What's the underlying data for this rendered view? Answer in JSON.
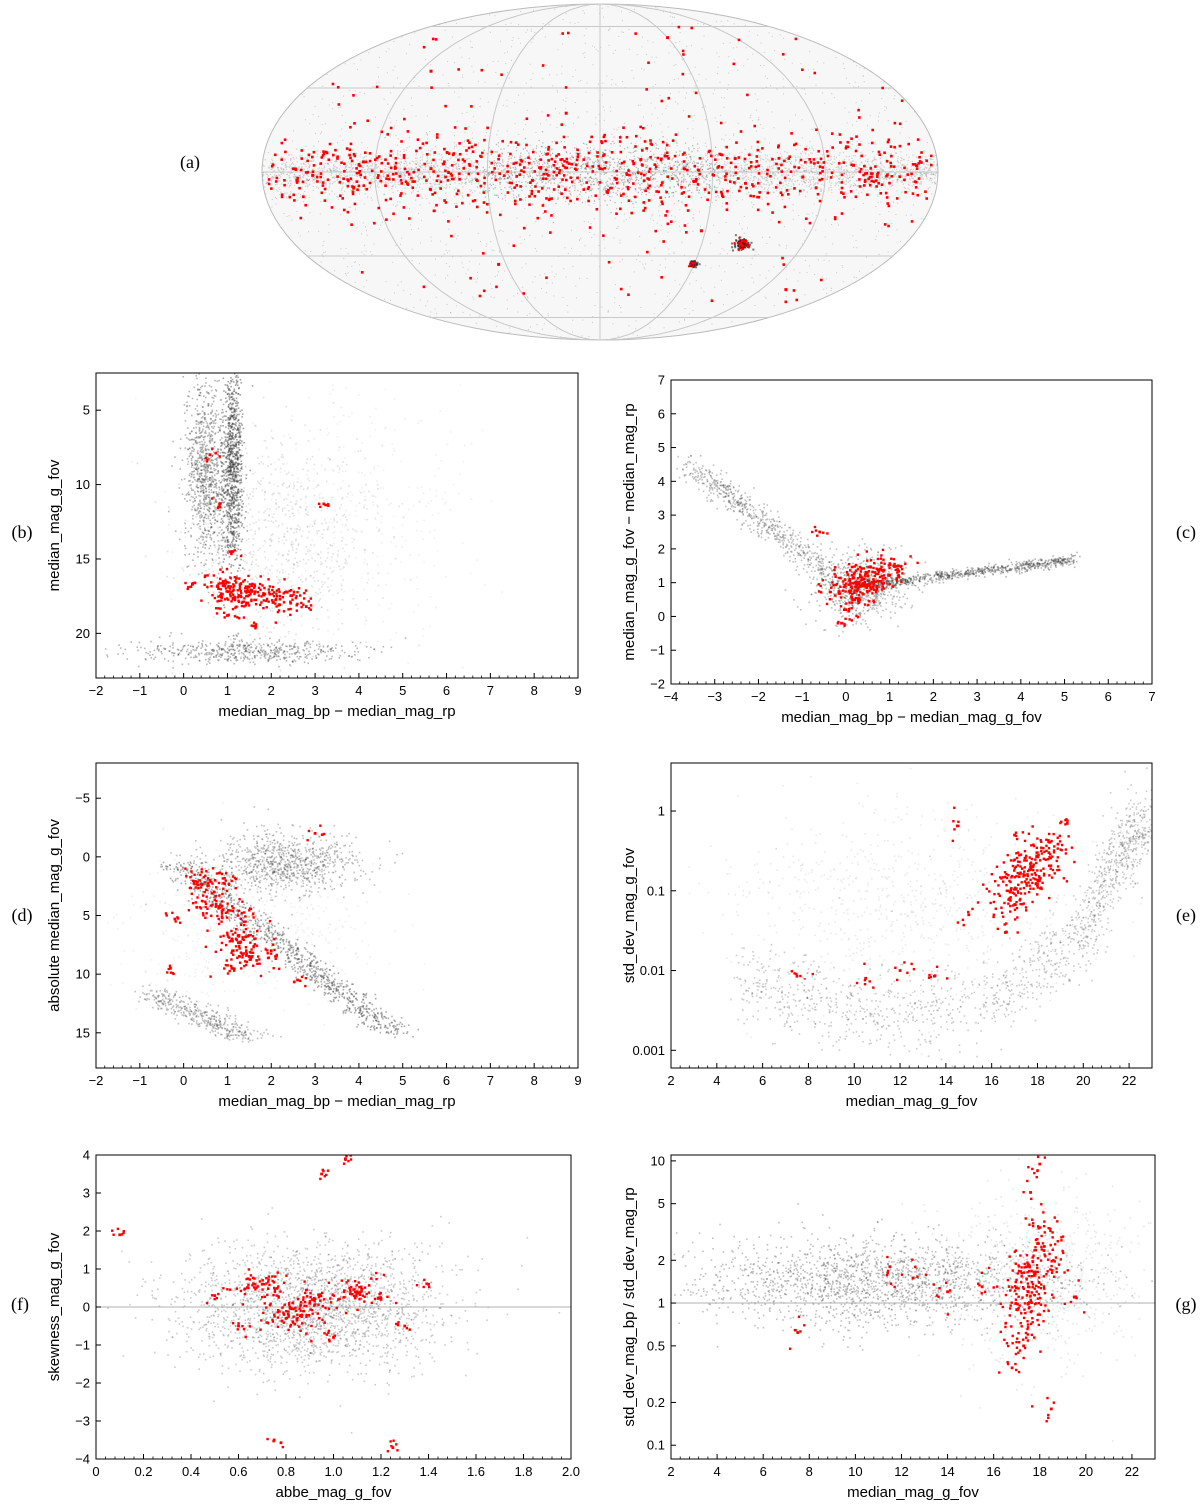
{
  "colors": {
    "accent": "#ff0000",
    "background_points": "#333333",
    "grid": "#c8c8c8",
    "frame": "#000000"
  },
  "chart_data": [
    {
      "id": "a",
      "panel_label": "(a)",
      "type": "scatter",
      "projection": "aitoff-sky",
      "title": "",
      "xlabel": "",
      "ylabel": "",
      "grid": true,
      "series": [
        {
          "color": "#ff0000",
          "points": [
            [
              0,
              0.02
            ],
            [
              0.1,
              0.05
            ],
            [
              -0.2,
              -0.05
            ],
            [
              0.4,
              0.08
            ],
            [
              -0.5,
              0.02
            ],
            [
              0.6,
              -0.03
            ],
            [
              -0.7,
              0.06
            ],
            [
              0.75,
              0.04
            ],
            [
              -0.85,
              -0.02
            ],
            [
              0.3,
              -0.35
            ],
            [
              0.42,
              -0.45
            ],
            [
              -0.1,
              0.35
            ],
            [
              0.2,
              0.8
            ],
            [
              -0.5,
              0.6
            ],
            [
              0.55,
              -0.7
            ],
            [
              -0.3,
              -0.55
            ]
          ]
        }
      ]
    },
    {
      "id": "b",
      "panel_label": "(b)",
      "type": "scatter",
      "title": "",
      "xlabel": "median_mag_bp − median_mag_rp",
      "ylabel": "median_mag_g_fov",
      "xlim": [
        -2,
        9
      ],
      "ylim": [
        23,
        2.5
      ],
      "y_inverted": true,
      "xticks": [
        "−2",
        "−1",
        "0",
        "1",
        "2",
        "3",
        "4",
        "5",
        "6",
        "7",
        "8",
        "9"
      ],
      "xtick_values": [
        -2,
        -1,
        0,
        1,
        2,
        3,
        4,
        5,
        6,
        7,
        8,
        9
      ],
      "yticks": [
        "5",
        "10",
        "15",
        "20"
      ],
      "ytick_values": [
        5,
        10,
        15,
        20
      ],
      "series": [
        {
          "color": "#ff0000",
          "points": [
            [
              1.3,
              17.5
            ],
            [
              1.5,
              17.2
            ],
            [
              0.9,
              16.8
            ],
            [
              2.2,
              17.7
            ],
            [
              0.6,
              8.0
            ],
            [
              0.8,
              11.5
            ],
            [
              1.1,
              14.5
            ],
            [
              3.2,
              11.3
            ],
            [
              0.2,
              16.7
            ],
            [
              2.8,
              18.2
            ],
            [
              1.6,
              19.5
            ],
            [
              1.0,
              18.8
            ]
          ]
        }
      ]
    },
    {
      "id": "c",
      "panel_label": "(c)",
      "type": "scatter",
      "title": "",
      "xlabel": "median_mag_bp − median_mag_g_fov",
      "ylabel": "median_mag_g_fov − median_mag_rp",
      "xlim": [
        -4,
        7
      ],
      "ylim": [
        -2,
        7
      ],
      "xticks": [
        "−4",
        "−3",
        "−2",
        "−1",
        "0",
        "1",
        "2",
        "3",
        "4",
        "5",
        "6",
        "7"
      ],
      "xtick_values": [
        -4,
        -3,
        -2,
        -1,
        0,
        1,
        2,
        3,
        4,
        5,
        6,
        7
      ],
      "yticks": [
        "−2",
        "−1",
        "0",
        "1",
        "2",
        "3",
        "4",
        "5",
        "6",
        "7"
      ],
      "ytick_values": [
        -2,
        -1,
        0,
        1,
        2,
        3,
        4,
        5,
        6,
        7
      ],
      "series": [
        {
          "color": "#ff0000",
          "points": [
            [
              0.3,
              1.0
            ],
            [
              0.5,
              1.2
            ],
            [
              0.1,
              0.7
            ],
            [
              0.8,
              1.4
            ],
            [
              -0.6,
              2.5
            ],
            [
              0.0,
              0.2
            ],
            [
              -0.1,
              -0.2
            ],
            [
              1.2,
              1.5
            ],
            [
              0.4,
              0.9
            ],
            [
              0.2,
              0.5
            ]
          ]
        }
      ]
    },
    {
      "id": "d",
      "panel_label": "(d)",
      "type": "scatter",
      "title": "",
      "xlabel": "median_mag_bp − median_mag_rp",
      "ylabel": "absolute median_mag_g_fov",
      "xlim": [
        -2,
        9
      ],
      "ylim": [
        18,
        -8
      ],
      "y_inverted": true,
      "xticks": [
        "−2",
        "−1",
        "0",
        "1",
        "2",
        "3",
        "4",
        "5",
        "6",
        "7",
        "8",
        "9"
      ],
      "xtick_values": [
        -2,
        -1,
        0,
        1,
        2,
        3,
        4,
        5,
        6,
        7,
        8,
        9
      ],
      "yticks": [
        "−5",
        "0",
        "5",
        "10",
        "15"
      ],
      "ytick_values": [
        -5,
        0,
        5,
        10,
        15
      ],
      "series": [
        {
          "color": "#ff0000",
          "points": [
            [
              0.6,
              2.0
            ],
            [
              0.9,
              4.5
            ],
            [
              1.2,
              7.0
            ],
            [
              1.5,
              8.5
            ],
            [
              0.3,
              4.3
            ],
            [
              -0.2,
              5.3
            ],
            [
              2.0,
              8.0
            ],
            [
              2.6,
              10.5
            ],
            [
              1.1,
              9.5
            ],
            [
              0.7,
              3.0
            ],
            [
              3.0,
              -2.0
            ],
            [
              -0.3,
              9.5
            ]
          ]
        }
      ]
    },
    {
      "id": "e",
      "panel_label": "(e)",
      "type": "scatter",
      "title": "",
      "xlabel": "median_mag_g_fov",
      "ylabel": "std_dev_mag_g_fov",
      "xlim": [
        2,
        23
      ],
      "ylim": [
        0.0006,
        4
      ],
      "y_scale": "log",
      "xticks": [
        "2",
        "4",
        "6",
        "8",
        "10",
        "12",
        "14",
        "16",
        "18",
        "20",
        "22"
      ],
      "xtick_values": [
        2,
        4,
        6,
        8,
        10,
        12,
        14,
        16,
        18,
        20,
        22
      ],
      "yticks": [
        "0.001",
        "0.01",
        "0.1",
        "1"
      ],
      "ytick_values": [
        0.001,
        0.01,
        0.1,
        1
      ],
      "series": [
        {
          "color": "#ff0000",
          "points": [
            [
              17.2,
              0.15
            ],
            [
              17.8,
              0.2
            ],
            [
              16.8,
              0.08
            ],
            [
              18.5,
              0.3
            ],
            [
              17.0,
              0.5
            ],
            [
              16.6,
              0.03
            ],
            [
              14.5,
              0.65
            ],
            [
              15.0,
              0.05
            ],
            [
              12.0,
              0.01
            ],
            [
              10.5,
              0.008
            ],
            [
              7.5,
              0.0085
            ],
            [
              19.3,
              0.7
            ],
            [
              18.0,
              0.12
            ],
            [
              13.5,
              0.0085
            ]
          ]
        },
        {
          "color": "#ffffff",
          "points": [
            [
              6,
              0.008
            ],
            [
              8,
              0.0075
            ],
            [
              10,
              0.0058
            ],
            [
              10.6,
              0.0048
            ],
            [
              11.3,
              0.007
            ],
            [
              12,
              0.0055
            ],
            [
              13,
              0.0048
            ],
            [
              14,
              0.0048
            ],
            [
              16,
              0.0065
            ],
            [
              18,
              0.012
            ],
            [
              20,
              0.05
            ],
            [
              21,
              0.1
            ],
            [
              21.5,
              0.4
            ],
            [
              22,
              0.7
            ],
            [
              23,
              0.7
            ]
          ]
        }
      ]
    },
    {
      "id": "f",
      "panel_label": "(f)",
      "type": "scatter",
      "title": "",
      "xlabel": "abbe_mag_g_fov",
      "ylabel": "skewness_mag_g_fov",
      "xlim": [
        0,
        2
      ],
      "ylim": [
        -4,
        4
      ],
      "xticks": [
        "0",
        "0.2",
        "0.4",
        "0.6",
        "0.8",
        "1.0",
        "1.2",
        "1.4",
        "1.6",
        "1.8",
        "2.0"
      ],
      "xtick_values": [
        0,
        0.2,
        0.4,
        0.6,
        0.8,
        1.0,
        1.2,
        1.4,
        1.6,
        1.8,
        2.0
      ],
      "yticks": [
        "−4",
        "−3",
        "−2",
        "−1",
        "0",
        "1",
        "2",
        "3",
        "4"
      ],
      "ytick_values": [
        -4,
        -3,
        -2,
        -1,
        0,
        1,
        2,
        3,
        4
      ],
      "series": [
        {
          "color": "#ff0000",
          "points": [
            [
              0.9,
              0.1
            ],
            [
              0.8,
              -0.3
            ],
            [
              1.1,
              0.4
            ],
            [
              0.7,
              0.6
            ],
            [
              1.0,
              -0.8
            ],
            [
              0.6,
              -0.5
            ],
            [
              1.2,
              0.2
            ],
            [
              0.95,
              3.5
            ],
            [
              1.05,
              3.9
            ],
            [
              0.75,
              -3.5
            ],
            [
              1.3,
              -0.5
            ],
            [
              0.1,
              1.9
            ],
            [
              0.5,
              0.3
            ],
            [
              1.4,
              0.6
            ],
            [
              1.25,
              -3.7
            ]
          ]
        }
      ]
    },
    {
      "id": "g",
      "panel_label": "(g)",
      "type": "scatter",
      "title": "",
      "xlabel": "median_mag_g_fov",
      "ylabel": "std_dev_mag_bp / std_dev_mag_rp",
      "xlim": [
        2,
        23
      ],
      "ylim": [
        0.08,
        11
      ],
      "y_scale": "log",
      "xticks": [
        "2",
        "4",
        "6",
        "8",
        "10",
        "12",
        "14",
        "16",
        "18",
        "20",
        "22"
      ],
      "xtick_values": [
        2,
        4,
        6,
        8,
        10,
        12,
        14,
        16,
        18,
        20,
        22
      ],
      "yticks": [
        "0.1",
        "0.2",
        "0.5",
        "1",
        "2",
        "5",
        "10"
      ],
      "ytick_values": [
        0.1,
        0.2,
        0.5,
        1,
        2,
        5,
        10
      ],
      "series": [
        {
          "color": "#ff0000",
          "points": [
            [
              17.5,
              1.2
            ],
            [
              17.8,
              1.6
            ],
            [
              17.0,
              0.9
            ],
            [
              18.2,
              2.5
            ],
            [
              17.3,
              0.5
            ],
            [
              16.8,
              0.35
            ],
            [
              17.6,
              6.0
            ],
            [
              18.0,
              9.5
            ],
            [
              11.5,
              1.8
            ],
            [
              12.5,
              1.5
            ],
            [
              14.0,
              1.2
            ],
            [
              15.5,
              1.3
            ],
            [
              7.5,
              0.62
            ],
            [
              18.5,
              0.18
            ],
            [
              19.5,
              1.1
            ]
          ]
        }
      ]
    }
  ]
}
